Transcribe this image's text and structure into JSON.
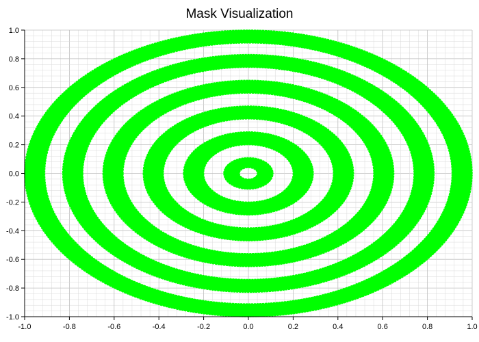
{
  "chart_data": {
    "type": "heatmap",
    "title": "Mask Visualization",
    "xlabel": "",
    "ylabel": "",
    "xlim": [
      -1.0,
      1.0
    ],
    "ylim": [
      -1.0,
      1.0
    ],
    "x_ticks": [
      "-1.0",
      "-0.8",
      "-0.6",
      "-0.4",
      "-0.2",
      "0.0",
      "0.2",
      "0.4",
      "0.6",
      "0.8",
      "1.0"
    ],
    "y_ticks": [
      "1.0",
      "0.8",
      "0.6",
      "0.4",
      "0.2",
      "0.0",
      "-0.2",
      "-0.4",
      "-0.6",
      "-0.8",
      "-1.0"
    ],
    "grid": true,
    "mask_color": "#00ff00",
    "grid_color": "#d9d9d9",
    "rings": [
      {
        "r_inner": 0.0,
        "r_outer": 0.11
      },
      {
        "r_inner": 0.2,
        "r_outer": 0.29
      },
      {
        "r_inner": 0.38,
        "r_outer": 0.47
      },
      {
        "r_inner": 0.56,
        "r_outer": 0.65
      },
      {
        "r_inner": 0.74,
        "r_outer": 0.83
      },
      {
        "r_inner": 0.91,
        "r_outer": 1.0
      }
    ],
    "center_hole_radius": 0.04
  }
}
